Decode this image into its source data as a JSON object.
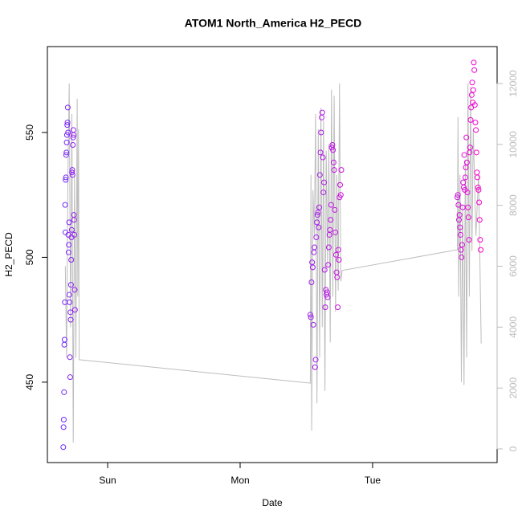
{
  "chart_data": {
    "type": "scatter",
    "title": "ATOM1 North_America H2_PECD",
    "x_label": "Date",
    "y_label": "H2_PECD",
    "xlim": [
      -0.455,
      2.94
    ],
    "xticks": [
      {
        "value": 0,
        "label": "Sun"
      },
      {
        "value": 1,
        "label": "Mon"
      },
      {
        "value": 2,
        "label": "Tue"
      }
    ],
    "ylim": [
      417.8,
      584.4
    ],
    "yticks": [
      450,
      500,
      550
    ],
    "y2lim": [
      -448,
      13213
    ],
    "y2ticks": [
      0,
      2000,
      4000,
      6000,
      8000,
      10000,
      12000
    ],
    "y2_color": "#bbbbbb",
    "series": [
      {
        "type": "scatter",
        "color_scale": [
          "#6a2bff",
          "#ff00cc"
        ],
        "x": [
          -0.335,
          -0.333,
          -0.331,
          -0.329,
          -0.327,
          -0.325,
          -0.323,
          -0.321,
          -0.319,
          -0.317,
          -0.315,
          -0.313,
          -0.311,
          -0.309,
          -0.307,
          -0.305,
          -0.303,
          -0.301,
          -0.299,
          -0.297,
          -0.295,
          -0.293,
          -0.291,
          -0.289,
          -0.287,
          -0.285,
          -0.283,
          -0.281,
          -0.279,
          -0.277,
          -0.275,
          -0.273,
          -0.271,
          -0.269,
          -0.267,
          -0.265,
          -0.263,
          -0.261,
          -0.259,
          -0.257,
          -0.255,
          -0.253,
          -0.251,
          -0.249,
          -0.247,
          1.53,
          1.5345,
          1.539,
          1.5435,
          1.548,
          1.5525,
          1.557,
          1.5615,
          1.566,
          1.5705,
          1.575,
          1.5795,
          1.584,
          1.5885,
          1.593,
          1.5975,
          1.602,
          1.6065,
          1.611,
          1.6155,
          1.62,
          1.6245,
          1.629,
          1.6335,
          1.638,
          1.6425,
          1.647,
          1.6515,
          1.656,
          1.6605,
          1.665,
          1.6695,
          1.674,
          1.6785,
          1.683,
          1.6875,
          1.692,
          1.6965,
          1.701,
          1.7055,
          1.71,
          1.7145,
          1.719,
          1.7235,
          1.728,
          1.7325,
          1.737,
          1.7415,
          1.746,
          1.7505,
          1.755,
          1.7595,
          1.764,
          2.64,
          2.644,
          2.648,
          2.652,
          2.656,
          2.66,
          2.664,
          2.668,
          2.672,
          2.676,
          2.68,
          2.684,
          2.688,
          2.692,
          2.696,
          2.7,
          2.704,
          2.708,
          2.712,
          2.716,
          2.72,
          2.724,
          2.728,
          2.732,
          2.736,
          2.74,
          2.744,
          2.748,
          2.752,
          2.756,
          2.76,
          2.764,
          2.768,
          2.772,
          2.776,
          2.78,
          2.784,
          2.788,
          2.792,
          2.796,
          2.8,
          2.804,
          2.808,
          2.812,
          2.816
        ],
        "values": [
          424,
          432,
          435,
          446,
          465,
          467,
          482,
          521,
          510,
          531,
          532,
          541,
          542,
          546,
          549,
          553,
          554,
          560,
          550,
          509,
          502,
          505,
          514,
          485,
          482,
          460,
          452,
          478,
          475,
          489,
          499,
          508,
          511,
          534,
          535,
          533,
          545,
          548,
          551,
          549,
          517,
          515,
          509,
          487,
          479,
          477,
          476,
          490,
          498,
          496,
          473,
          502,
          504,
          456,
          459,
          508,
          514,
          517,
          518,
          512,
          520,
          533,
          542,
          550,
          556,
          558,
          540,
          526,
          530,
          495,
          480,
          487,
          485,
          486,
          484,
          497,
          504,
          509,
          511,
          515,
          521,
          544,
          545,
          543,
          538,
          535,
          519,
          510,
          501,
          494,
          492,
          480,
          503,
          499,
          524,
          529,
          525,
          535,
          524,
          525,
          521,
          515,
          517,
          512,
          509,
          503,
          500,
          505,
          520,
          530,
          528,
          541,
          527,
          532,
          536,
          548,
          538,
          526,
          520,
          516,
          507,
          542,
          544,
          555,
          560,
          565,
          570,
          562,
          567,
          578,
          575,
          561,
          554,
          551,
          542,
          534,
          532,
          528,
          527,
          522,
          515,
          507,
          503
        ]
      },
      {
        "type": "line",
        "axis": "y2",
        "color": "#bdbdbd",
        "x": [
          -0.32,
          -0.31,
          -0.3,
          -0.29,
          -0.28,
          -0.27,
          -0.26,
          -0.25,
          -0.24,
          -0.23,
          -0.225,
          -0.22,
          -0.215,
          1.53,
          1.535,
          1.54,
          1.55,
          1.56,
          1.57,
          1.58,
          1.59,
          1.6,
          1.61,
          1.62,
          1.63,
          1.64,
          1.65,
          1.66,
          1.67,
          1.68,
          1.69,
          1.7,
          1.71,
          1.72,
          1.73,
          1.74,
          1.75,
          1.76,
          1.77,
          2.64,
          2.645,
          2.65,
          2.66,
          2.67,
          2.68,
          2.69,
          2.7,
          2.71,
          2.72,
          2.73,
          2.74,
          2.75,
          2.76,
          2.78,
          2.8,
          2.82
        ],
        "values": [
          6000,
          3000,
          9000,
          12000,
          4000,
          11000,
          200,
          9000,
          3000,
          11500,
          5000,
          10500,
          2930,
          2160,
          9000,
          600,
          8500,
          7000,
          11000,
          1500,
          10500,
          3000,
          11200,
          4000,
          10800,
          1900,
          9800,
          6000,
          10000,
          3500,
          11800,
          5000,
          11600,
          4500,
          9000,
          5200,
          12000,
          5500,
          5860,
          6540,
          10900,
          5000,
          9000,
          2200,
          8000,
          2100,
          9500,
          3000,
          12000,
          5000,
          11900,
          6500,
          10500,
          7000,
          9000,
          3460
        ]
      }
    ]
  }
}
